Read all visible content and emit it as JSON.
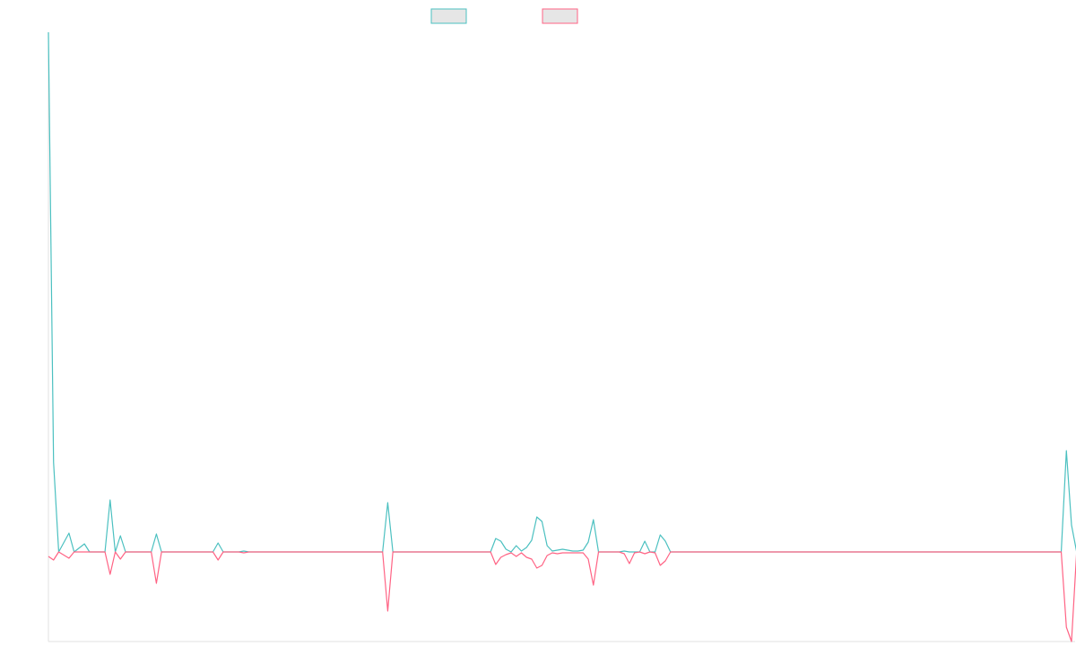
{
  "chart_data": {
    "type": "line",
    "title": "",
    "xlabel": "",
    "ylabel": "",
    "x_range": [
      0,
      199
    ],
    "ylim": [
      -100,
      580
    ],
    "grid": false,
    "legend": {
      "position": "top-center",
      "marker_fill": "#e6e6e6"
    },
    "series": [
      {
        "color": "#4bc0c0",
        "points": [
          [
            0,
            580
          ],
          [
            1,
            100
          ],
          [
            2,
            0
          ],
          [
            4,
            21
          ],
          [
            5,
            0
          ],
          [
            7,
            9
          ],
          [
            8,
            0
          ],
          [
            11,
            0
          ],
          [
            12,
            58
          ],
          [
            13,
            0
          ],
          [
            14,
            18
          ],
          [
            15,
            0
          ],
          [
            20,
            0
          ],
          [
            21,
            20
          ],
          [
            22,
            0
          ],
          [
            32,
            0
          ],
          [
            33,
            10
          ],
          [
            34,
            0
          ],
          [
            37,
            0
          ],
          [
            38,
            1
          ],
          [
            39,
            0
          ],
          [
            65,
            0
          ],
          [
            66,
            55
          ],
          [
            67,
            0
          ],
          [
            86,
            0
          ],
          [
            87,
            15
          ],
          [
            88,
            12
          ],
          [
            89,
            3
          ],
          [
            90,
            0
          ],
          [
            91,
            7
          ],
          [
            92,
            1
          ],
          [
            93,
            5
          ],
          [
            94,
            13
          ],
          [
            95,
            39
          ],
          [
            96,
            34
          ],
          [
            97,
            7
          ],
          [
            98,
            1
          ],
          [
            99,
            2
          ],
          [
            100,
            3
          ],
          [
            101,
            2
          ],
          [
            102,
            1
          ],
          [
            103,
            1
          ],
          [
            104,
            2
          ],
          [
            105,
            11
          ],
          [
            106,
            36
          ],
          [
            107,
            0
          ],
          [
            111,
            0
          ],
          [
            112,
            1
          ],
          [
            113,
            0
          ],
          [
            115,
            0
          ],
          [
            116,
            12
          ],
          [
            117,
            0
          ],
          [
            118,
            0
          ],
          [
            119,
            19
          ],
          [
            120,
            12
          ],
          [
            121,
            0
          ],
          [
            197,
            0
          ],
          [
            198,
            113
          ],
          [
            199,
            30
          ],
          [
            200,
            0
          ]
        ]
      },
      {
        "color": "#ff6384",
        "points": [
          [
            0,
            -5
          ],
          [
            1,
            -9
          ],
          [
            2,
            0
          ],
          [
            4,
            -7
          ],
          [
            5,
            0
          ],
          [
            11,
            0
          ],
          [
            12,
            -25
          ],
          [
            13,
            0
          ],
          [
            14,
            -8
          ],
          [
            15,
            0
          ],
          [
            20,
            0
          ],
          [
            21,
            -35
          ],
          [
            22,
            0
          ],
          [
            32,
            0
          ],
          [
            33,
            -9
          ],
          [
            34,
            0
          ],
          [
            37,
            0
          ],
          [
            38,
            -1
          ],
          [
            39,
            0
          ],
          [
            65,
            0
          ],
          [
            66,
            -66
          ],
          [
            67,
            0
          ],
          [
            86,
            0
          ],
          [
            87,
            -14
          ],
          [
            88,
            -6
          ],
          [
            89,
            -3
          ],
          [
            90,
            -1
          ],
          [
            91,
            -5
          ],
          [
            92,
            -1
          ],
          [
            93,
            -6
          ],
          [
            94,
            -8
          ],
          [
            95,
            -18
          ],
          [
            96,
            -15
          ],
          [
            97,
            -4
          ],
          [
            98,
            -1
          ],
          [
            99,
            -2
          ],
          [
            100,
            -1
          ],
          [
            101,
            -1
          ],
          [
            102,
            -1
          ],
          [
            103,
            -1
          ],
          [
            104,
            -1
          ],
          [
            105,
            -8
          ],
          [
            106,
            -37
          ],
          [
            107,
            0
          ],
          [
            111,
            0
          ],
          [
            112,
            -2
          ],
          [
            113,
            -13
          ],
          [
            114,
            -1
          ],
          [
            115,
            0
          ],
          [
            116,
            -2
          ],
          [
            117,
            0
          ],
          [
            118,
            -1
          ],
          [
            119,
            -15
          ],
          [
            120,
            -10
          ],
          [
            121,
            0
          ],
          [
            197,
            0
          ],
          [
            198,
            -84
          ],
          [
            199,
            -100
          ],
          [
            200,
            0
          ]
        ]
      }
    ]
  }
}
